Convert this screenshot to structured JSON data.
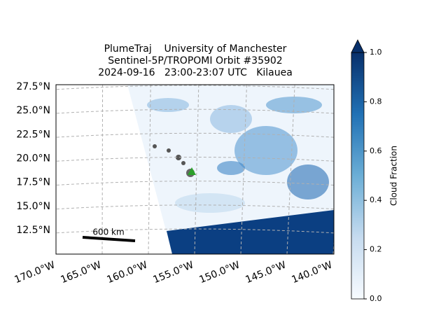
{
  "map": {
    "title_lines": [
      "PlumeTraj    University of Manchester",
      "Sentinel-5P/TROPOMI Orbit #35902",
      "2024-09-16   23:00-23:07 UTC   Kilauea"
    ],
    "lat_ticks": [
      {
        "value": 27.5,
        "label": "27.5°N"
      },
      {
        "value": 25,
        "label": "25.0°N"
      },
      {
        "value": 22.5,
        "label": "22.5°N"
      },
      {
        "value": 20,
        "label": "20.0°N"
      },
      {
        "value": 17.5,
        "label": "17.5°N"
      },
      {
        "value": 15,
        "label": "15.0°N"
      },
      {
        "value": 12.5,
        "label": "12.5°N"
      }
    ],
    "lon_ticks": [
      {
        "value": -170,
        "label": "170.0°W"
      },
      {
        "value": -165,
        "label": "165.0°W"
      },
      {
        "value": -160,
        "label": "160.0°W"
      },
      {
        "value": -155,
        "label": "155.0°W"
      },
      {
        "value": -150,
        "label": "150.0°W"
      },
      {
        "value": -145,
        "label": "145.0°W"
      },
      {
        "value": -140,
        "label": "140.0°W"
      }
    ],
    "scale_bar_label": "600 km",
    "colorbar": {
      "label": "Cloud Fraction",
      "lim": [
        0,
        1
      ],
      "ticks": [
        {
          "value": 0,
          "label": "0.0"
        },
        {
          "value": 0.2,
          "label": "0.2"
        },
        {
          "value": 0.4,
          "label": "0.4"
        },
        {
          "value": 0.6,
          "label": "0.6"
        },
        {
          "value": 0.8,
          "label": "0.8"
        },
        {
          "value": 1,
          "label": "1.0"
        }
      ]
    }
  }
}
